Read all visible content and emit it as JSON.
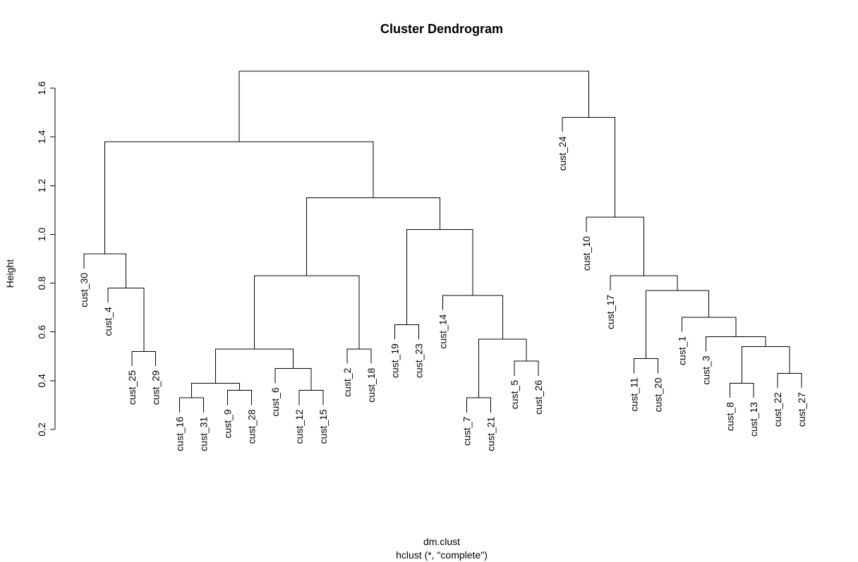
{
  "chart_data": {
    "type": "dendrogram",
    "title": "Cluster Dendrogram",
    "ylabel": "Height",
    "xlabel": "dm.clust",
    "sublabel": "hclust (*, \"complete\")",
    "ylim": [
      0.2,
      1.75
    ],
    "yticks": [
      0.2,
      0.4,
      0.6,
      0.8,
      1.0,
      1.2,
      1.4,
      1.6
    ],
    "ytick_labels": [
      "0.2",
      "0.4",
      "0.6",
      "0.8",
      "1.0",
      "1.2",
      "1.4",
      "1.6"
    ],
    "leaves": [
      "cust_30",
      "cust_4",
      "cust_25",
      "cust_29",
      "cust_16",
      "cust_31",
      "cust_9",
      "cust_28",
      "cust_6",
      "cust_12",
      "cust_15",
      "cust_2",
      "cust_18",
      "cust_19",
      "cust_23",
      "cust_14",
      "cust_7",
      "cust_21",
      "cust_5",
      "cust_26",
      "cust_24",
      "cust_10",
      "cust_17",
      "cust_11",
      "cust_20",
      "cust_1",
      "cust_3",
      "cust_8",
      "cust_13",
      "cust_22",
      "cust_27"
    ],
    "merges": [
      {
        "left": "cust_25",
        "right": "cust_29",
        "height": 0.52
      },
      {
        "left": "cust_4",
        "right": 1,
        "height": 0.78
      },
      {
        "left": "cust_30",
        "right": 2,
        "height": 0.92
      },
      {
        "left": "cust_16",
        "right": "cust_31",
        "height": 0.33
      },
      {
        "left": "cust_9",
        "right": "cust_28",
        "height": 0.36
      },
      {
        "left": 4,
        "right": 5,
        "height": 0.39
      },
      {
        "left": "cust_12",
        "right": "cust_15",
        "height": 0.36
      },
      {
        "left": "cust_6",
        "right": 7,
        "height": 0.45
      },
      {
        "left": 6,
        "right": 8,
        "height": 0.53
      },
      {
        "left": "cust_2",
        "right": "cust_18",
        "height": 0.53
      },
      {
        "left": 9,
        "right": 10,
        "height": 0.83
      },
      {
        "left": "cust_19",
        "right": "cust_23",
        "height": 0.63
      },
      {
        "left": "cust_7",
        "right": "cust_21",
        "height": 0.33
      },
      {
        "left": "cust_5",
        "right": "cust_26",
        "height": 0.48
      },
      {
        "left": 13,
        "right": 14,
        "height": 0.57
      },
      {
        "left": "cust_14",
        "right": 15,
        "height": 0.75
      },
      {
        "left": 12,
        "right": 16,
        "height": 1.02
      },
      {
        "left": 11,
        "right": 17,
        "height": 1.15
      },
      {
        "left": 3,
        "right": 18,
        "height": 1.38
      },
      {
        "left": "cust_11",
        "right": "cust_20",
        "height": 0.49
      },
      {
        "left": "cust_8",
        "right": "cust_13",
        "height": 0.39
      },
      {
        "left": "cust_22",
        "right": "cust_27",
        "height": 0.43
      },
      {
        "left": 21,
        "right": 22,
        "height": 0.54
      },
      {
        "left": "cust_3",
        "right": 23,
        "height": 0.58
      },
      {
        "left": "cust_1",
        "right": 24,
        "height": 0.66
      },
      {
        "left": 20,
        "right": 25,
        "height": 0.77
      },
      {
        "left": "cust_17",
        "right": 26,
        "height": 0.83
      },
      {
        "left": "cust_10",
        "right": 27,
        "height": 1.07
      },
      {
        "left": "cust_24",
        "right": 28,
        "height": 1.48
      },
      {
        "left": 19,
        "right": 29,
        "height": 1.67
      }
    ]
  }
}
